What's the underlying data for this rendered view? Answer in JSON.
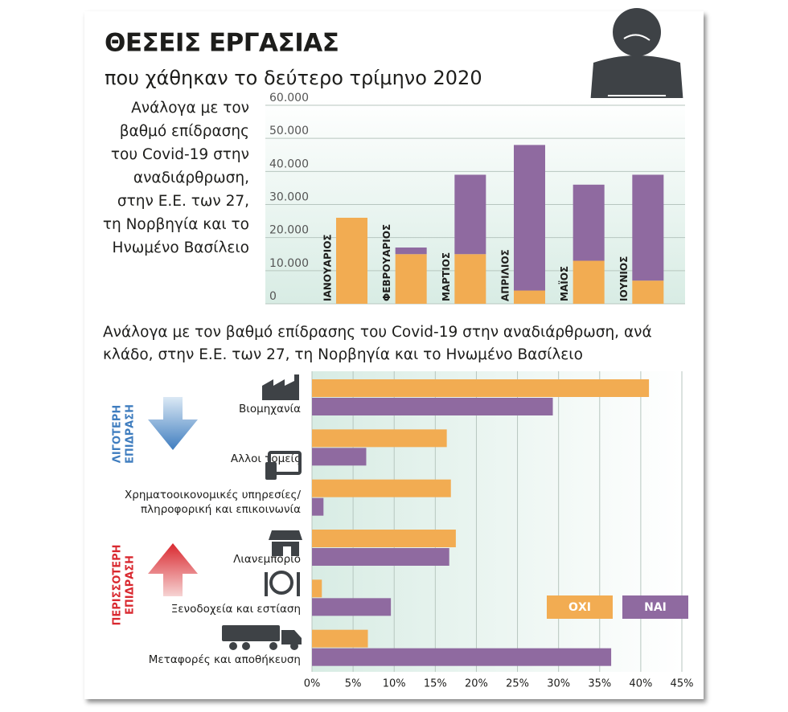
{
  "chart_data": [
    {
      "type": "stacked-bar",
      "title": "ΘΕΣΕΙΣ ΕΡΓΑΣΙΑΣ",
      "subtitle": "που χάθηκαν το δεύτερο τρίμηνο 2020",
      "description": "Ανάλογα με τον βαθμό επίδρασης του Covid-19 στην αναδιάρθρωση, στην Ε.Ε. των 27, τη Νορβηγία και το Ηνωμένο Βασίλειο",
      "categories": [
        "ΙΑΝΟΥΑΡΙΟΣ",
        "ΦΕΒΡΟΥΑΡΙΟΣ",
        "ΜΑΡΤΙΟΣ",
        "ΑΠΡΙΛΙΟΣ",
        "ΜΑΪΟΣ",
        "ΙΟΥΝΙΟΣ"
      ],
      "series": [
        {
          "color": "#f2ac52",
          "values": [
            26000,
            15000,
            15000,
            4000,
            13000,
            7000
          ]
        },
        {
          "color": "#8f6aa0",
          "values": [
            0,
            2000,
            24000,
            44000,
            23000,
            32000
          ]
        }
      ],
      "ylim": [
        0,
        60000
      ],
      "yticks": [
        0,
        {
          "value": 10000,
          "label": "10.000"
        },
        {
          "value": 20000,
          "label": "20.000"
        },
        {
          "value": 30000,
          "label": "30.000"
        },
        {
          "value": 40000,
          "label": "40.000"
        },
        {
          "value": 50000,
          "label": "50.000"
        },
        {
          "value": 60000,
          "label": "60.000"
        }
      ],
      "grid": true
    },
    {
      "type": "horizontal-grouped-bar",
      "title": "Ανάλογα με τον βαθμό επίδρασης του Covid-19 στην αναδιάρθρωση, ανά κλάδο, στην Ε.Ε. των 27, τη Νορβηγία και το Ηνωμένο Βασίλειο",
      "groups": [
        [
          "ΛΙΓΟΤΕΡΗ",
          "ΕΠΙΔΡΑΣΗ"
        ],
        [
          "ΠΕΡΙΣΣΟΤΕΡΗ",
          "ΕΠΙΔΡΑΣΗ"
        ]
      ],
      "categories": [
        "Βιομηχανία",
        "Αλλοι τομείς",
        "Χρηματοοικονομικές υπηρεσίες/ πληροφορική και επικοινωνία",
        "Λιανεμπόριο",
        "Ξενοδοχεία και εστίαση",
        "Μεταφορές και αποθήκευση"
      ],
      "series": [
        {
          "name": "ΟΧΙ",
          "color": "#f2ac52",
          "values": [
            41,
            16.4,
            16.9,
            17.5,
            1.2,
            6.8
          ]
        },
        {
          "name": "ΝΑΙ",
          "color": "#8f6aa0",
          "values": [
            29.3,
            6.6,
            1.4,
            16.7,
            9.6,
            36.4
          ]
        }
      ],
      "xlim": [
        0,
        45
      ],
      "xticks": [
        {
          "value": 0,
          "label": "0%"
        },
        {
          "value": 5,
          "label": "5%"
        },
        {
          "value": 10,
          "label": "10%"
        },
        {
          "value": 15,
          "label": "15%"
        },
        {
          "value": 20,
          "label": "20%"
        },
        {
          "value": 25,
          "label": "25%"
        },
        {
          "value": 30,
          "label": "30%"
        },
        {
          "value": 35,
          "label": "35%"
        },
        {
          "value": 40,
          "label": "40%"
        },
        {
          "value": 45,
          "label": "45%"
        }
      ],
      "grid": true,
      "legend": "bottom-right"
    }
  ]
}
